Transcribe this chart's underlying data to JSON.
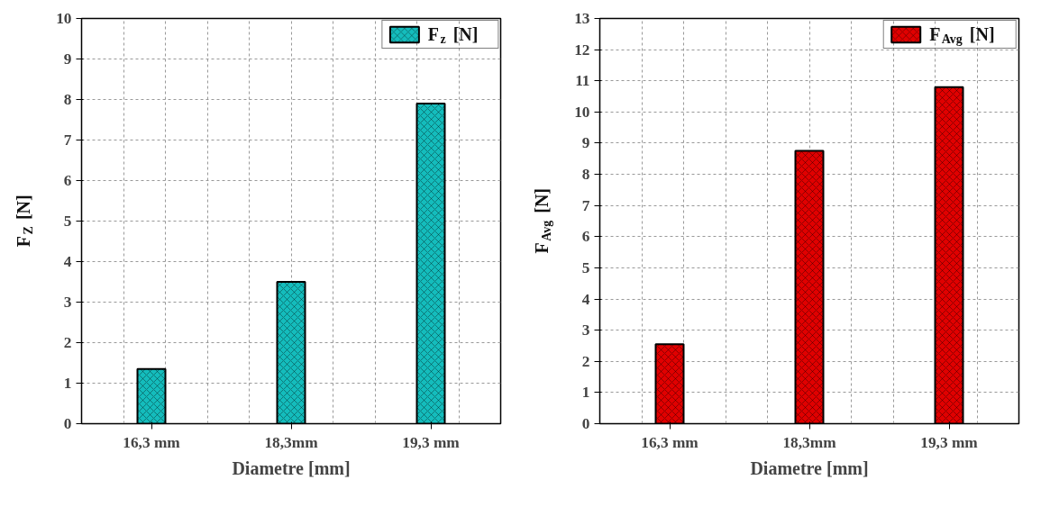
{
  "chart_data": [
    {
      "type": "bar",
      "categories": [
        "16,3 mm",
        "18,3mm",
        "19,3 mm"
      ],
      "xlabel": "Diametre [mm]",
      "ylabel": "F$_{Z}$ [N]",
      "series": [
        {
          "name": "F$_{z}$ [N]",
          "color": "#14bcbc",
          "values": [
            1.35,
            3.5,
            7.9
          ]
        }
      ],
      "ylim": [
        0,
        10
      ],
      "yticks": [
        0,
        1,
        2,
        3,
        4,
        5,
        6,
        7,
        8,
        9,
        10
      ],
      "grid": true,
      "legend": "top right"
    },
    {
      "type": "bar",
      "categories": [
        "16,3 mm",
        "18,3mm",
        "19,3 mm"
      ],
      "xlabel": "Diametre [mm]",
      "ylabel": "F$_{Avg}$ [N]",
      "series": [
        {
          "name": "F$_{Avg}$ [N]",
          "color": "#e00000",
          "values": [
            2.55,
            8.75,
            10.8
          ]
        }
      ],
      "ylim": [
        0,
        13
      ],
      "yticks": [
        0,
        1,
        2,
        3,
        4,
        5,
        6,
        7,
        8,
        9,
        10,
        11,
        12,
        13
      ],
      "grid": true,
      "legend": "top right"
    }
  ]
}
